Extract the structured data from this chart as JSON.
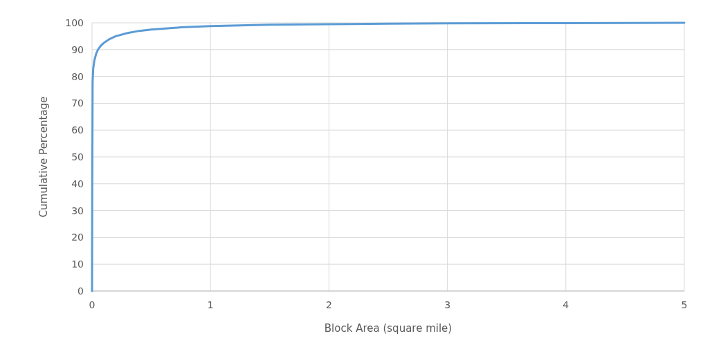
{
  "chart_data": {
    "type": "line",
    "xlabel": "Block Area (square mile)",
    "ylabel": "Cumulative Percentage",
    "xlim": [
      0,
      5
    ],
    "ylim": [
      0,
      100
    ],
    "xticks": [
      0,
      1,
      2,
      3,
      4,
      5
    ],
    "yticks": [
      0,
      10,
      20,
      30,
      40,
      50,
      60,
      70,
      80,
      90,
      100
    ],
    "grid": true,
    "marker": "none",
    "line_style": "solid",
    "series": [
      {
        "color": "#5b9bd5",
        "x": [
          0,
          0.002,
          0.005,
          0.01,
          0.02,
          0.035,
          0.05,
          0.075,
          0.1,
          0.15,
          0.2,
          0.3,
          0.4,
          0.5,
          0.75,
          1,
          1.5,
          2,
          2.5,
          3,
          4,
          5
        ],
        "values": [
          0,
          40,
          78,
          83,
          86,
          88.5,
          90,
          91.5,
          92.5,
          94,
          95,
          96.2,
          97,
          97.5,
          98.3,
          98.8,
          99.3,
          99.5,
          99.7,
          99.8,
          99.9,
          100
        ]
      }
    ]
  }
}
